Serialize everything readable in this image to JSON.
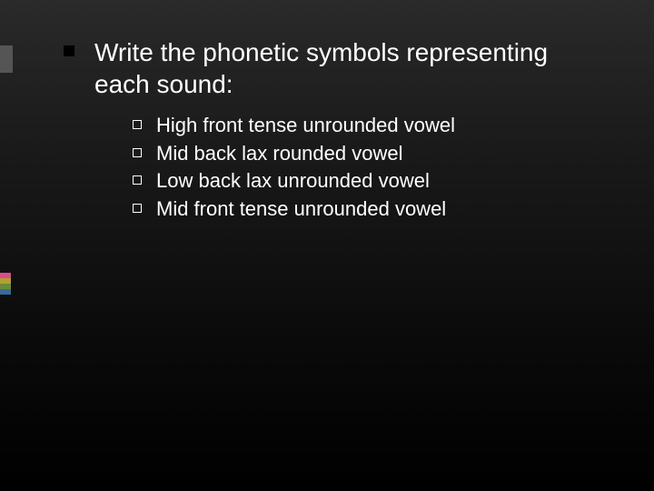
{
  "slide": {
    "background_gradient": [
      "#2a2a2a",
      "#1a1a1a",
      "#0a0a0a",
      "#000000"
    ],
    "text_color": "#ffffff",
    "main_bullet_color": "#000000",
    "sub_bullet_border": "#ffffff",
    "accent_top_color": "#555555",
    "accent_stripes": [
      "#d94f8a",
      "#b0a030",
      "#6a8a3a",
      "#3a6a9a"
    ],
    "main_fontsize": 28,
    "sub_fontsize": 22
  },
  "content": {
    "main": "Write the phonetic symbols representing each sound:",
    "subs": [
      "High front tense unrounded vowel",
      "Mid back lax rounded vowel",
      "Low back lax unrounded vowel",
      "Mid front tense unrounded vowel"
    ]
  }
}
